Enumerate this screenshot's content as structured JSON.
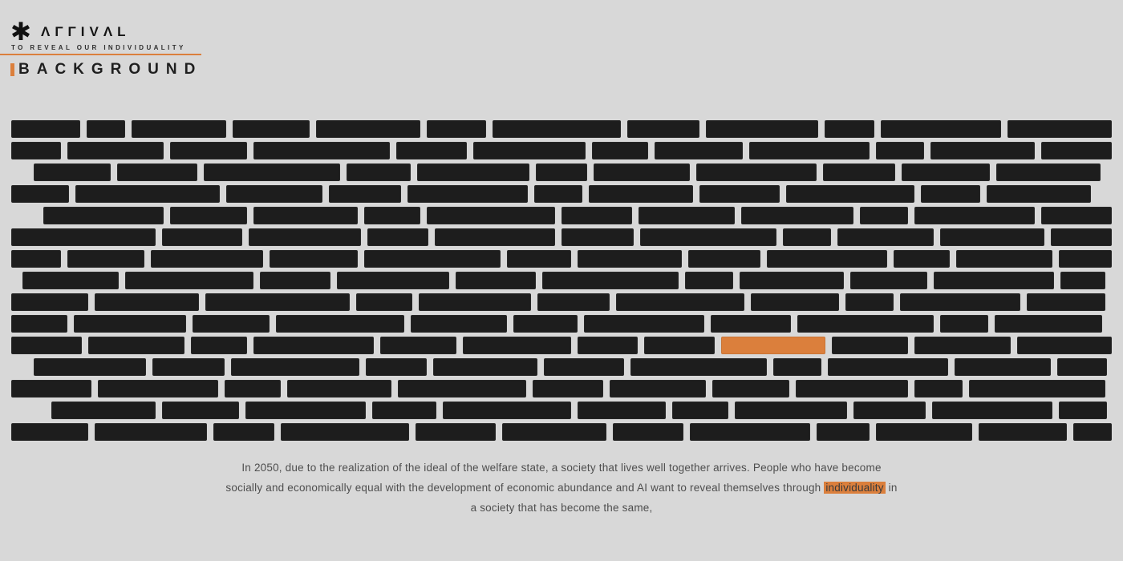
{
  "header": {
    "logo_mark": "✱",
    "logo_text": "ΛΓΓIVΛL",
    "tagline": "TO REVEAL OUR INDIVIDUALITY",
    "section_title": "BACKGROUND"
  },
  "colors": {
    "accent_orange": "#DB7F3C",
    "brick": "#1D1D1D",
    "background": "#D8D8D8",
    "body_text": "#4E4E4E"
  },
  "wall": {
    "brick_height": 22,
    "row_gap": 5,
    "brick_gap": 8,
    "highlight": {
      "row": 10,
      "index": 8
    },
    "rows": [
      {
        "offset": 0,
        "widths": [
          86,
          48,
          118,
          96,
          130,
          74,
          160,
          90,
          140,
          62,
          150,
          130
        ]
      },
      {
        "offset": 0,
        "widths": [
          62,
          120,
          96,
          170,
          88,
          140,
          70,
          110,
          150,
          60,
          130,
          88
        ]
      },
      {
        "offset": 28,
        "widths": [
          96,
          100,
          170,
          80,
          140,
          64,
          120,
          150,
          90,
          110,
          130
        ]
      },
      {
        "offset": 0,
        "widths": [
          72,
          180,
          120,
          90,
          150,
          60,
          130,
          100,
          160,
          74,
          130
        ]
      },
      {
        "offset": 40,
        "widths": [
          150,
          96,
          130,
          70,
          160,
          88,
          120,
          140,
          60,
          150,
          88
        ]
      },
      {
        "offset": 0,
        "widths": [
          180,
          100,
          140,
          76,
          150,
          90,
          170,
          60,
          120,
          130,
          76
        ]
      },
      {
        "offset": 0,
        "widths": [
          62,
          96,
          140,
          110,
          170,
          80,
          130,
          90,
          150,
          70,
          120,
          66
        ]
      },
      {
        "offset": 14,
        "widths": [
          120,
          160,
          88,
          140,
          100,
          170,
          60,
          130,
          96,
          150,
          56
        ]
      },
      {
        "offset": 0,
        "widths": [
          96,
          130,
          180,
          70,
          140,
          90,
          160,
          110,
          60,
          150,
          98
        ]
      },
      {
        "offset": 0,
        "widths": [
          70,
          140,
          96,
          160,
          120,
          80,
          150,
          100,
          170,
          60,
          134
        ]
      },
      {
        "offset": 0,
        "widths": [
          88,
          120,
          70,
          150,
          95,
          135,
          75,
          88,
          130,
          95,
          120,
          118
        ]
      },
      {
        "offset": 28,
        "widths": [
          140,
          90,
          160,
          76,
          130,
          100,
          170,
          60,
          150,
          120,
          62
        ]
      },
      {
        "offset": 0,
        "widths": [
          100,
          150,
          70,
          130,
          160,
          88,
          120,
          96,
          140,
          60,
          170
        ]
      },
      {
        "offset": 50,
        "widths": [
          130,
          96,
          150,
          80,
          160,
          110,
          70,
          140,
          90,
          150,
          60
        ]
      },
      {
        "offset": 0,
        "widths": [
          96,
          140,
          76,
          160,
          100,
          130,
          88,
          150,
          66,
          120,
          110,
          48
        ]
      }
    ]
  },
  "paragraph": {
    "line1": "In 2050, due to the realization of the ideal of the welfare state, a society that lives well together arrives. People who have become",
    "line2_before": "socially and economically equal with the development of economic abundance and AI want to reveal themselves through",
    "highlight_word": "individuality",
    "line2_after": "in",
    "line3": "a society that has become the same,"
  }
}
